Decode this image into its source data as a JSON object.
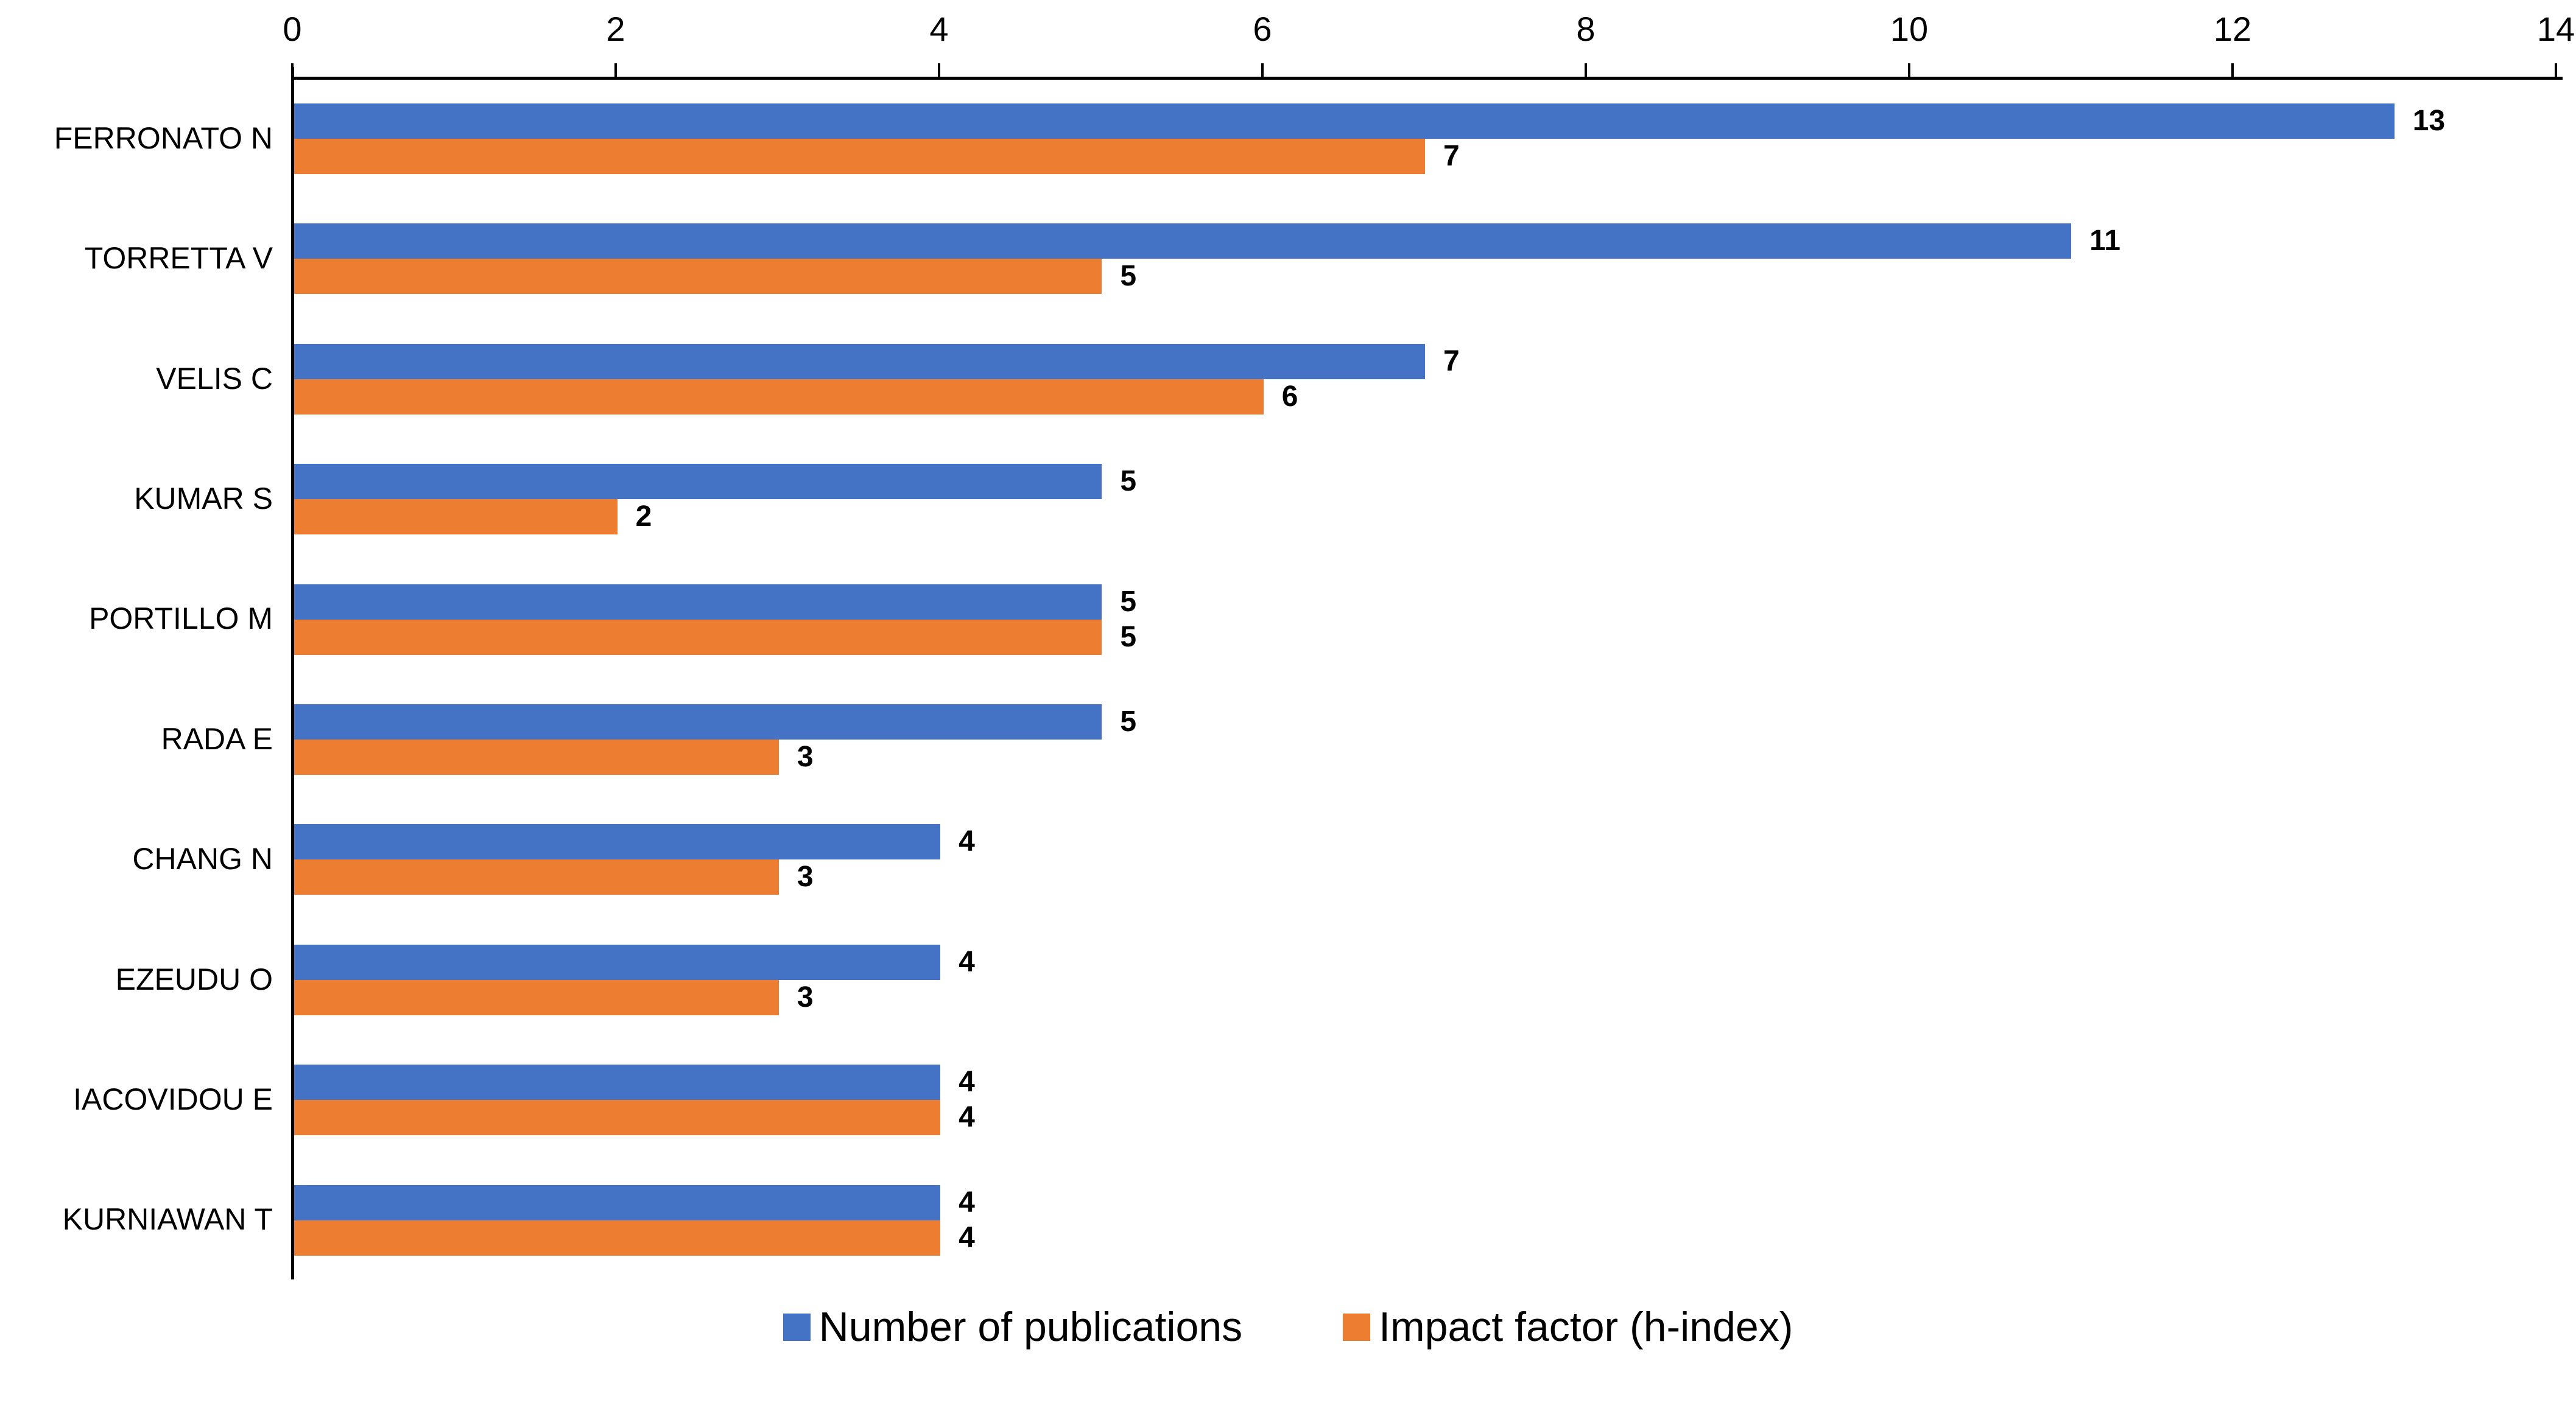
{
  "chart_data": {
    "type": "bar",
    "orientation": "horizontal",
    "title": "",
    "xlabel": "",
    "ylabel": "",
    "categories": [
      "FERRONATO N",
      "TORRETTA V",
      "VELIS C",
      "KUMAR S",
      "PORTILLO M",
      "RADA E",
      "CHANG N",
      "EZEUDU O",
      "IACOVIDOU E",
      "KURNIAWAN T"
    ],
    "series": [
      {
        "name": "Number of publications",
        "color": "#4472C4",
        "values": [
          13,
          11,
          7,
          5,
          5,
          5,
          4,
          4,
          4,
          4
        ]
      },
      {
        "name": "Impact factor (h-index)",
        "color": "#ED7D31",
        "values": [
          7,
          5,
          6,
          2,
          5,
          3,
          3,
          3,
          4,
          4
        ]
      }
    ],
    "xlim": [
      0,
      14
    ],
    "x_ticks": [
      0,
      2,
      4,
      6,
      8,
      10,
      12,
      14
    ],
    "x_axis_position": "top",
    "value_labels": true,
    "grid": false,
    "legend_position": "bottom"
  },
  "colors": {
    "publications": "#4472C4",
    "h_index": "#ED7D31",
    "axis": "#000000",
    "text": "#000000",
    "background": "#FFFFFF"
  }
}
